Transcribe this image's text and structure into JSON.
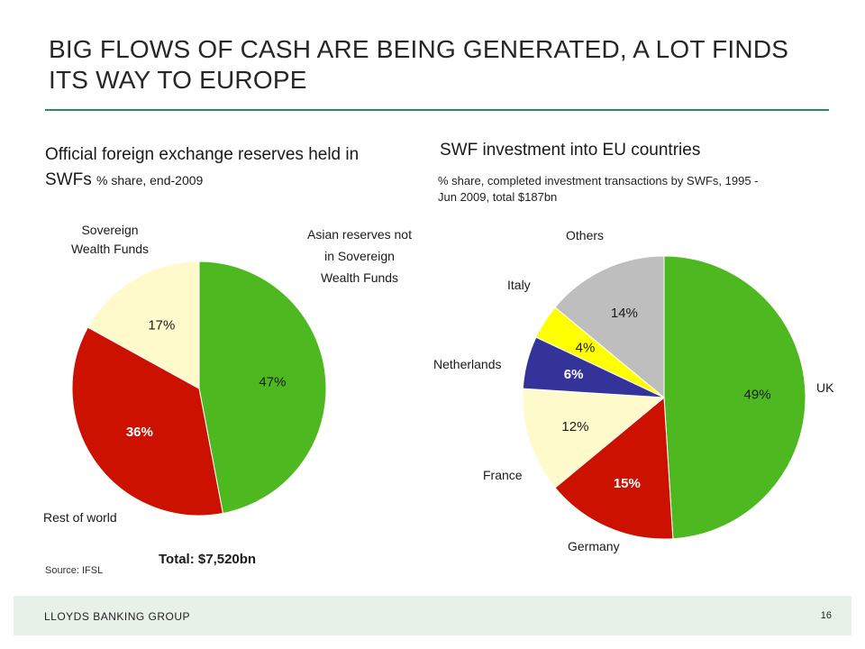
{
  "slide": {
    "title": "BIG FLOWS OF CASH ARE BEING GENERATED, A LOT FINDS ITS WAY TO EUROPE",
    "footer_brand": "LLOYDS BANKING GROUP",
    "page_number": "16",
    "source": "Source: IFSL",
    "total": "Total: $7,520bn"
  },
  "left_chart": {
    "title_main": "Official foreign exchange reserves held in SWFs",
    "title_sub": "% share, end-2009",
    "labels": {
      "swf": "Sovereign Wealth Funds",
      "asian": "Asian reserves not in Sovereign Wealth Funds",
      "rest": "Rest of world"
    }
  },
  "right_chart": {
    "title": "SWF investment into EU countries",
    "subtitle": "% share, completed investment transactions by SWFs, 1995 - Jun 2009, total $187bn",
    "labels": {
      "uk": "UK",
      "germany": "Germany",
      "france": "France",
      "netherlands": "Netherlands",
      "italy": "Italy",
      "others": "Others"
    }
  },
  "chart_data": [
    {
      "type": "pie",
      "title": "Official foreign exchange reserves held in SWFs % share, end-2009",
      "slices": [
        {
          "label": "Asian reserves not in Sovereign Wealth Funds",
          "value": 47,
          "text": "47%",
          "color": "#4db81f"
        },
        {
          "label": "Rest of world",
          "value": 36,
          "text": "36%",
          "color": "#cc1100"
        },
        {
          "label": "Sovereign Wealth Funds",
          "value": 17,
          "text": "17%",
          "color": "#fffacc"
        }
      ],
      "total_label": "Total: $7,520bn"
    },
    {
      "type": "pie",
      "title": "SWF investment into EU countries",
      "slices": [
        {
          "label": "UK",
          "value": 49,
          "text": "49%",
          "color": "#4db81f"
        },
        {
          "label": "Germany",
          "value": 15,
          "text": "15%",
          "color": "#cc1100"
        },
        {
          "label": "France",
          "value": 12,
          "text": "12%",
          "color": "#fffacc"
        },
        {
          "label": "Netherlands",
          "value": 6,
          "text": "6%",
          "color": "#33339a"
        },
        {
          "label": "Italy",
          "value": 4,
          "text": "4%",
          "color": "#ffff00"
        },
        {
          "label": "Others",
          "value": 14,
          "text": "14%",
          "color": "#bebebe"
        }
      ]
    }
  ]
}
